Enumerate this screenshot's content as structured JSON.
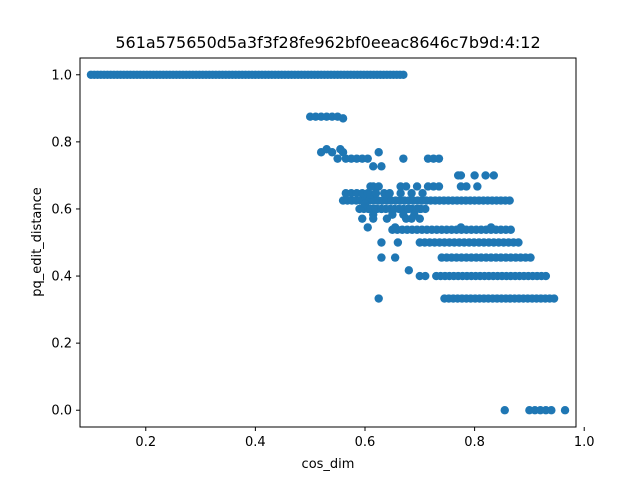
{
  "chart_data": {
    "type": "scatter",
    "title": "561a575650d5a3f3f28fe962bf0eeac8646c7b9d:4:12",
    "xlabel": "cos_dim",
    "ylabel": "pq_edit_distance",
    "xlim": [
      0.08,
      0.985
    ],
    "ylim": [
      -0.05,
      1.05
    ],
    "xticks": [
      0.2,
      0.4,
      0.6,
      0.8,
      1.0
    ],
    "xtick_labels": [
      "0.2",
      "0.4",
      "0.6",
      "0.8",
      "1.0"
    ],
    "yticks": [
      0.0,
      0.2,
      0.4,
      0.6,
      0.8,
      1.0
    ],
    "ytick_labels": [
      "0.0",
      "0.2",
      "0.4",
      "0.6",
      "0.8",
      "1.0"
    ],
    "grid": false,
    "marker_color": "#1f77b4",
    "series": [
      {
        "name": "",
        "bands": [
          {
            "y": 1.0,
            "x_from": 0.1,
            "x_to": 0.67,
            "step": 0.006
          },
          {
            "y": 0.333,
            "x_from": 0.745,
            "x_to": 0.95,
            "step": 0.008
          },
          {
            "y": 0.4,
            "x_from": 0.73,
            "x_to": 0.93,
            "step": 0.008
          },
          {
            "y": 0.455,
            "x_from": 0.74,
            "x_to": 0.91,
            "step": 0.009
          },
          {
            "y": 0.5,
            "x_from": 0.7,
            "x_to": 0.88,
            "step": 0.009
          },
          {
            "y": 0.538,
            "x_from": 0.65,
            "x_to": 0.87,
            "step": 0.009
          },
          {
            "y": 0.6,
            "x_from": 0.59,
            "x_to": 0.71,
            "step": 0.008
          },
          {
            "y": 0.625,
            "x_from": 0.56,
            "x_to": 0.87,
            "step": 0.008
          }
        ],
        "points": [
          [
            0.5,
            0.875
          ],
          [
            0.51,
            0.875
          ],
          [
            0.52,
            0.875
          ],
          [
            0.53,
            0.875
          ],
          [
            0.54,
            0.875
          ],
          [
            0.55,
            0.875
          ],
          [
            0.56,
            0.87
          ],
          [
            0.52,
            0.769
          ],
          [
            0.53,
            0.778
          ],
          [
            0.54,
            0.769
          ],
          [
            0.55,
            0.75
          ],
          [
            0.555,
            0.778
          ],
          [
            0.56,
            0.769
          ],
          [
            0.565,
            0.75
          ],
          [
            0.575,
            0.75
          ],
          [
            0.585,
            0.75
          ],
          [
            0.595,
            0.75
          ],
          [
            0.605,
            0.75
          ],
          [
            0.615,
            0.727
          ],
          [
            0.625,
            0.769
          ],
          [
            0.63,
            0.727
          ],
          [
            0.67,
            0.75
          ],
          [
            0.715,
            0.75
          ],
          [
            0.725,
            0.75
          ],
          [
            0.735,
            0.75
          ],
          [
            0.77,
            0.7
          ],
          [
            0.775,
            0.7
          ],
          [
            0.8,
            0.7
          ],
          [
            0.82,
            0.7
          ],
          [
            0.835,
            0.7
          ],
          [
            0.61,
            0.667
          ],
          [
            0.615,
            0.667
          ],
          [
            0.625,
            0.667
          ],
          [
            0.665,
            0.667
          ],
          [
            0.675,
            0.667
          ],
          [
            0.695,
            0.667
          ],
          [
            0.715,
            0.667
          ],
          [
            0.725,
            0.667
          ],
          [
            0.735,
            0.667
          ],
          [
            0.775,
            0.667
          ],
          [
            0.785,
            0.667
          ],
          [
            0.805,
            0.667
          ],
          [
            0.565,
            0.647
          ],
          [
            0.575,
            0.647
          ],
          [
            0.585,
            0.647
          ],
          [
            0.595,
            0.647
          ],
          [
            0.605,
            0.647
          ],
          [
            0.61,
            0.643
          ],
          [
            0.62,
            0.647
          ],
          [
            0.635,
            0.647
          ],
          [
            0.645,
            0.647
          ],
          [
            0.665,
            0.647
          ],
          [
            0.685,
            0.647
          ],
          [
            0.705,
            0.647
          ],
          [
            0.6,
            0.615
          ],
          [
            0.61,
            0.6
          ],
          [
            0.615,
            0.583
          ],
          [
            0.62,
            0.6
          ],
          [
            0.63,
            0.6
          ],
          [
            0.65,
            0.583
          ],
          [
            0.67,
            0.583
          ],
          [
            0.68,
            0.6
          ],
          [
            0.69,
            0.583
          ],
          [
            0.7,
            0.6
          ],
          [
            0.595,
            0.571
          ],
          [
            0.615,
            0.571
          ],
          [
            0.64,
            0.571
          ],
          [
            0.675,
            0.571
          ],
          [
            0.685,
            0.571
          ],
          [
            0.7,
            0.571
          ],
          [
            0.605,
            0.545
          ],
          [
            0.655,
            0.545
          ],
          [
            0.775,
            0.545
          ],
          [
            0.83,
            0.545
          ],
          [
            0.63,
            0.5
          ],
          [
            0.66,
            0.5
          ],
          [
            0.63,
            0.455
          ],
          [
            0.655,
            0.455
          ],
          [
            0.68,
            0.417
          ],
          [
            0.7,
            0.4
          ],
          [
            0.71,
            0.4
          ],
          [
            0.625,
            0.333
          ],
          [
            0.855,
            0.0
          ],
          [
            0.9,
            0.0
          ],
          [
            0.91,
            0.0
          ],
          [
            0.92,
            0.0
          ],
          [
            0.93,
            0.0
          ],
          [
            0.94,
            0.0
          ],
          [
            0.965,
            0.0
          ]
        ]
      }
    ]
  }
}
